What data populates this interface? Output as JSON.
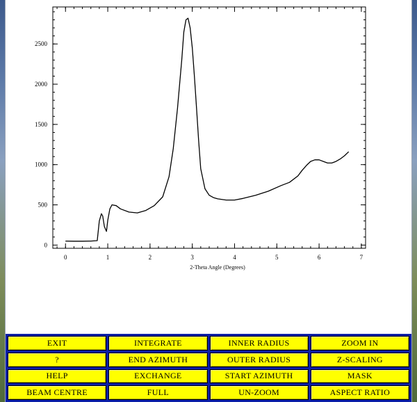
{
  "chart_data": {
    "type": "line",
    "xlabel": "2-Theta Angle (Degrees)",
    "ylabel": "",
    "title": "",
    "xlim": [
      -0.3,
      7.1
    ],
    "ylim": [
      -40,
      2960
    ],
    "x_ticks": [
      0,
      1,
      2,
      3,
      4,
      5,
      6,
      7
    ],
    "x_tick_labels": [
      "0",
      "1",
      "2",
      "3",
      "4",
      "5",
      "6",
      "7"
    ],
    "y_ticks": [
      0,
      500,
      1000,
      1500,
      2000,
      2500
    ],
    "y_tick_labels": [
      "0",
      "500",
      "1000",
      "1500",
      "2000",
      "2500"
    ],
    "color": "#000000",
    "series": [
      {
        "x": [
          0.0,
          0.2,
          0.4,
          0.6,
          0.75,
          0.8,
          0.85,
          0.88,
          0.92,
          0.97,
          1.0,
          1.05,
          1.1,
          1.2,
          1.3,
          1.5,
          1.7,
          1.9,
          2.1,
          2.3,
          2.45,
          2.55,
          2.65,
          2.75,
          2.8,
          2.85,
          2.9,
          2.95,
          3.0,
          3.05,
          3.1,
          3.15,
          3.2,
          3.3,
          3.4,
          3.5,
          3.6,
          3.8,
          4.0,
          4.2,
          4.5,
          4.8,
          5.1,
          5.3,
          5.5,
          5.6,
          5.7,
          5.8,
          5.9,
          6.0,
          6.1,
          6.2,
          6.3,
          6.4,
          6.5,
          6.6,
          6.7
        ],
        "y": [
          50,
          48,
          48,
          50,
          55,
          300,
          390,
          360,
          230,
          170,
          310,
          450,
          500,
          490,
          450,
          410,
          400,
          430,
          490,
          600,
          850,
          1200,
          1700,
          2300,
          2650,
          2800,
          2820,
          2700,
          2450,
          2100,
          1700,
          1300,
          950,
          700,
          620,
          590,
          575,
          560,
          560,
          580,
          620,
          670,
          740,
          780,
          860,
          930,
          990,
          1040,
          1060,
          1060,
          1040,
          1020,
          1020,
          1040,
          1070,
          1110,
          1160
        ]
      }
    ]
  },
  "buttons": [
    "EXIT",
    "INTEGRATE",
    "INNER RADIUS",
    "ZOOM IN",
    "?",
    "END AZIMUTH",
    "OUTER RADIUS",
    "Z-SCALING",
    "HELP",
    "EXCHANGE",
    "START AZIMUTH",
    "MASK",
    "BEAM CENTRE",
    "FULL",
    "UN-ZOOM",
    "ASPECT RATIO"
  ]
}
